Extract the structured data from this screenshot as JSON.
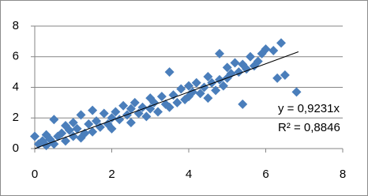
{
  "chart_data": {
    "type": "scatter",
    "color": "#4a7ebb",
    "line_color": "#000000",
    "grid": true,
    "xlim": [
      0,
      8
    ],
    "xticks": [
      0,
      2,
      4,
      6,
      8
    ],
    "ylim": [
      0,
      8
    ],
    "yticks": [
      0,
      2,
      4,
      6,
      8
    ],
    "x": [
      0.0,
      0.1,
      0.2,
      0.3,
      0.3,
      0.4,
      0.5,
      0.5,
      0.6,
      0.7,
      0.8,
      0.8,
      0.9,
      1.0,
      1.0,
      1.1,
      1.2,
      1.2,
      1.3,
      1.4,
      1.5,
      1.5,
      1.6,
      1.7,
      1.8,
      1.9,
      2.0,
      2.0,
      2.1,
      2.2,
      2.3,
      2.4,
      2.5,
      2.5,
      2.6,
      2.7,
      2.8,
      2.9,
      3.0,
      3.0,
      3.1,
      3.2,
      3.3,
      3.4,
      3.5,
      3.5,
      3.6,
      3.7,
      3.8,
      3.9,
      4.0,
      4.0,
      4.1,
      4.2,
      4.3,
      4.4,
      4.5,
      4.5,
      4.6,
      4.7,
      4.8,
      4.8,
      4.9,
      5.0,
      5.0,
      5.1,
      5.2,
      5.3,
      5.4,
      5.4,
      5.5,
      5.6,
      5.7,
      5.8,
      5.9,
      6.0,
      6.2,
      6.3,
      6.4,
      6.5,
      6.8
    ],
    "y": [
      0.8,
      0.3,
      0.5,
      0.2,
      0.9,
      0.6,
      1.9,
      0.3,
      0.8,
      1.0,
      0.5,
      1.5,
      1.2,
      0.8,
      1.7,
      1.3,
      2.2,
      0.7,
      1.0,
      1.6,
      2.5,
      1.1,
      1.8,
      1.4,
      2.3,
      1.6,
      2.0,
      1.3,
      2.4,
      1.9,
      2.8,
      2.2,
      2.6,
      1.7,
      3.0,
      2.3,
      2.7,
      2.1,
      3.3,
      2.6,
      3.0,
      2.4,
      3.4,
      2.9,
      5.0,
      2.7,
      3.5,
      3.0,
      3.9,
      3.2,
      4.1,
      3.4,
      3.7,
      4.3,
      3.6,
      4.0,
      4.7,
      3.3,
      4.3,
      3.8,
      6.2,
      4.5,
      4.1,
      5.3,
      4.6,
      4.9,
      5.6,
      5.0,
      2.9,
      5.5,
      5.2,
      6.0,
      5.4,
      5.7,
      6.2,
      6.5,
      6.4,
      4.6,
      6.9,
      4.8,
      3.7
    ],
    "trendline": {
      "label": "y = 0,9231x",
      "r2_label": "R² = 0,8846",
      "slope": 0.9231,
      "x_range": [
        0,
        6.85
      ]
    }
  }
}
